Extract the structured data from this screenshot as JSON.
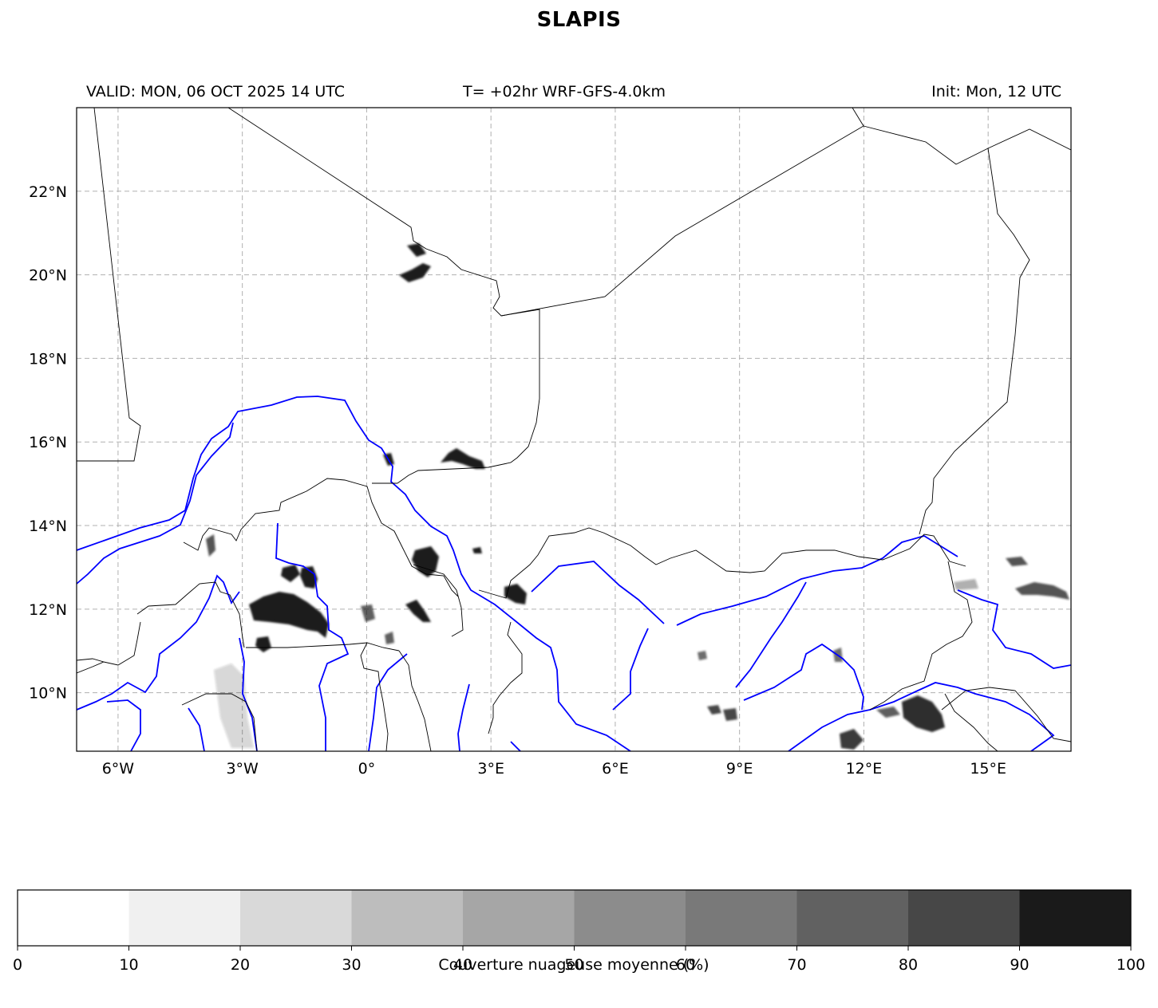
{
  "title": "SLAPIS",
  "header": {
    "valid": "VALID: MON, 06 OCT 2025 14 UTC",
    "model": "T= +02hr WRF-GFS-4.0km",
    "init": "Init: Mon, 12 UTC"
  },
  "map": {
    "lon_range": [
      -7,
      17
    ],
    "lat_range": [
      8.6,
      24
    ],
    "lon_ticks": [
      -6,
      -3,
      0,
      3,
      6,
      9,
      12,
      15
    ],
    "lon_tick_labels": [
      "6°W",
      "3°W",
      "0°",
      "3°E",
      "6°E",
      "9°E",
      "12°E",
      "15°E"
    ],
    "lat_ticks": [
      10,
      12,
      14,
      16,
      18,
      20,
      22
    ],
    "lat_tick_labels": [
      "10°N",
      "12°N",
      "14°N",
      "16°N",
      "18°N",
      "20°N",
      "22°N"
    ],
    "gridlines": true,
    "border_color": "#000000",
    "river_color": "#0000ff",
    "cloud_color": "#1a1a1a"
  },
  "colorbar": {
    "label": "Couverture nuageuse moyenne (%)",
    "ticks": [
      "0",
      "10",
      "20",
      "30",
      "40",
      "50",
      "60",
      "70",
      "80",
      "90",
      "100"
    ],
    "colors": [
      "#ffffff",
      "#f0f0f0",
      "#d9d9d9",
      "#bdbdbd",
      "#a6a6a6",
      "#8c8c8c",
      "#797979",
      "#616161",
      "#474747",
      "#1a1a1a"
    ]
  }
}
